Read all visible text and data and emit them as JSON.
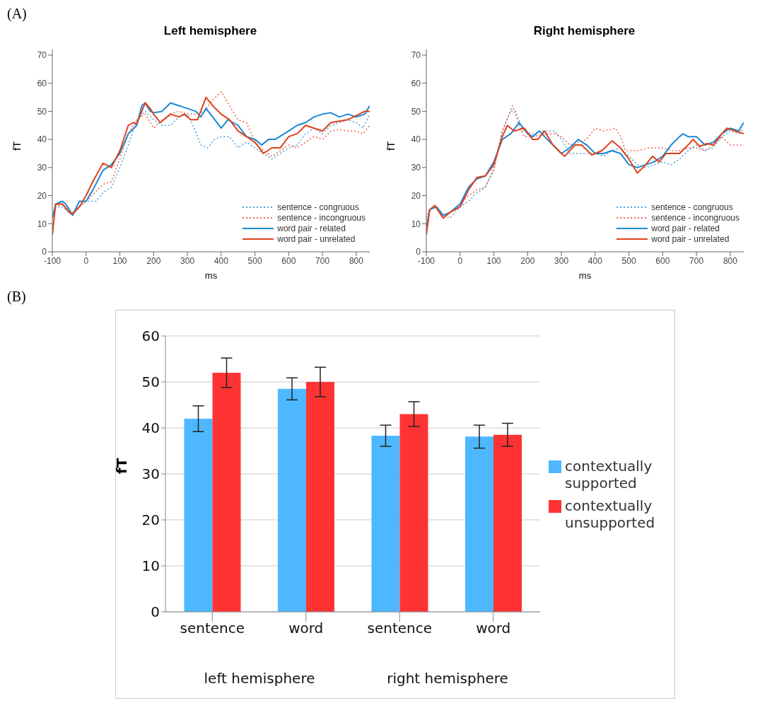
{
  "chart_data": [
    {
      "type": "line",
      "title": "Left hemisphere",
      "xlabel": "ms",
      "ylabel": "fT",
      "annotations": [
        "(A)"
      ],
      "xlim": [
        -100,
        840
      ],
      "ylim": [
        0,
        72
      ],
      "xticks": [
        -100,
        0,
        100,
        200,
        300,
        400,
        500,
        600,
        700,
        800
      ],
      "yticks": [
        0,
        10,
        20,
        30,
        40,
        50,
        60,
        70
      ],
      "legend": "bottom right",
      "series": [
        {
          "name": "sentence - congruous",
          "color": "#4fa3e0",
          "line_style": "dotted",
          "x": [
            -100,
            -90,
            -70,
            -40,
            -20,
            0,
            30,
            50,
            75,
            100,
            125,
            150,
            175,
            200,
            225,
            250,
            275,
            300,
            320,
            340,
            360,
            380,
            400,
            425,
            450,
            475,
            500,
            525,
            550,
            575,
            600,
            625,
            650,
            675,
            700,
            725,
            750,
            775,
            800,
            820,
            840
          ],
          "values": [
            12,
            16,
            16,
            13,
            16,
            18,
            18,
            21,
            23,
            30,
            38,
            47,
            50,
            47,
            45,
            45,
            48,
            49,
            44,
            38,
            37,
            40,
            41,
            41,
            37,
            39,
            37,
            35,
            33,
            35,
            37,
            38,
            42,
            44,
            42,
            45,
            46,
            47,
            46,
            44,
            49
          ]
        },
        {
          "name": "sentence - incongruous",
          "color": "#ef6a50",
          "line_style": "dotted",
          "x": [
            -100,
            -90,
            -70,
            -40,
            -20,
            0,
            25,
            50,
            75,
            100,
            125,
            150,
            175,
            200,
            225,
            250,
            275,
            300,
            325,
            350,
            375,
            400,
            420,
            450,
            475,
            500,
            525,
            550,
            575,
            600,
            625,
            650,
            675,
            700,
            725,
            750,
            775,
            800,
            820,
            840
          ],
          "values": [
            12,
            16,
            17,
            14,
            16,
            18,
            21,
            24,
            25,
            33,
            42,
            47,
            49,
            44,
            47,
            49,
            50,
            49,
            49,
            50,
            54,
            57,
            53,
            47,
            46,
            39,
            36,
            34,
            36,
            38,
            37,
            39,
            41,
            40,
            43,
            43.5,
            43,
            43,
            42,
            45
          ]
        },
        {
          "name": "word pair - related",
          "color": "#1a88d4",
          "line_style": "solid",
          "x": [
            -100,
            -90,
            -70,
            -60,
            -40,
            -20,
            0,
            20,
            50,
            75,
            100,
            125,
            150,
            165,
            175,
            190,
            200,
            225,
            250,
            275,
            300,
            325,
            340,
            355,
            375,
            400,
            420,
            450,
            475,
            500,
            520,
            540,
            560,
            600,
            625,
            650,
            675,
            700,
            725,
            750,
            775,
            800,
            825,
            840
          ],
          "values": [
            12,
            17,
            18,
            17,
            13,
            18,
            18,
            22,
            29,
            31,
            35,
            42,
            45,
            52,
            53,
            50,
            49.5,
            50,
            53,
            52,
            51,
            50,
            48,
            51,
            48,
            44,
            47,
            45,
            41,
            40,
            38,
            40,
            40,
            43,
            45,
            46,
            48,
            49,
            49.5,
            48,
            49,
            48,
            49,
            52
          ]
        },
        {
          "name": "word pair - unrelated",
          "color": "#e0401c",
          "line_style": "solid",
          "x": [
            -100,
            -90,
            -70,
            -50,
            -40,
            -20,
            0,
            20,
            50,
            75,
            100,
            125,
            140,
            150,
            165,
            175,
            190,
            200,
            220,
            250,
            275,
            290,
            310,
            330,
            355,
            375,
            400,
            425,
            450,
            475,
            500,
            525,
            550,
            575,
            600,
            625,
            650,
            675,
            700,
            725,
            750,
            775,
            800,
            825,
            840
          ],
          "values": [
            6,
            17,
            17,
            14,
            13.5,
            16,
            20,
            25,
            31.5,
            30,
            36,
            45,
            46,
            45.5,
            50,
            53,
            51,
            49,
            46,
            49,
            48,
            49,
            47,
            47,
            55,
            52,
            49,
            47,
            43,
            41,
            39,
            35,
            37,
            37,
            41,
            42,
            45,
            44,
            43,
            46,
            46.5,
            47,
            48.5,
            50,
            50
          ]
        }
      ]
    },
    {
      "type": "line",
      "title": "Right hemisphere",
      "xlabel": "ms",
      "ylabel": "fT",
      "xlim": [
        -100,
        840
      ],
      "ylim": [
        0,
        72
      ],
      "xticks": [
        -100,
        0,
        100,
        200,
        300,
        400,
        500,
        600,
        700,
        800
      ],
      "yticks": [
        0,
        10,
        20,
        30,
        40,
        50,
        60,
        70
      ],
      "legend": "bottom right",
      "series": [
        {
          "name": "sentence - congruous",
          "color": "#4fa3e0",
          "line_style": "dotted",
          "x": [
            -100,
            -90,
            -70,
            -50,
            -30,
            0,
            25,
            50,
            75,
            100,
            125,
            150,
            165,
            185,
            215,
            240,
            260,
            280,
            300,
            325,
            350,
            375,
            400,
            425,
            450,
            475,
            500,
            525,
            550,
            575,
            600,
            625,
            650,
            675,
            700,
            725,
            750,
            775,
            800,
            825,
            840
          ],
          "values": [
            12,
            15,
            16,
            13,
            12,
            16,
            18,
            21,
            23,
            30,
            43,
            50,
            50,
            43,
            42,
            43,
            43,
            43,
            40,
            35,
            35,
            35,
            35,
            34,
            36,
            37,
            34,
            31,
            30,
            31,
            32,
            31,
            33,
            36,
            38,
            36,
            37,
            41,
            43,
            42,
            44
          ]
        },
        {
          "name": "sentence - incongruous",
          "color": "#ef6a50",
          "line_style": "dotted",
          "x": [
            -100,
            -90,
            -70,
            -50,
            -30,
            0,
            25,
            50,
            75,
            100,
            125,
            155,
            175,
            190,
            215,
            260,
            280,
            300,
            325,
            350,
            375,
            400,
            425,
            460,
            475,
            490,
            525,
            560,
            600,
            625,
            650,
            675,
            700,
            725,
            750,
            775,
            800,
            820,
            840
          ],
          "values": [
            10,
            15,
            16,
            12,
            14,
            17,
            20,
            22,
            23,
            29,
            43,
            52,
            45,
            41,
            41,
            42,
            42,
            41,
            38,
            39,
            40,
            44,
            43,
            44,
            41,
            36,
            36,
            37,
            37,
            36,
            36,
            37,
            37,
            36,
            38,
            41,
            38,
            38,
            38
          ]
        },
        {
          "name": "word pair - related",
          "color": "#1a88d4",
          "line_style": "solid",
          "x": [
            -100,
            -90,
            -70,
            -50,
            -30,
            0,
            25,
            50,
            75,
            100,
            125,
            150,
            175,
            200,
            215,
            235,
            250,
            275,
            300,
            325,
            350,
            375,
            400,
            425,
            450,
            475,
            500,
            525,
            550,
            575,
            600,
            625,
            650,
            660,
            675,
            700,
            725,
            750,
            775,
            800,
            825,
            840
          ],
          "values": [
            8,
            15,
            16,
            13,
            14,
            17,
            23,
            26,
            27,
            32,
            40,
            42,
            46,
            42,
            41,
            43,
            41,
            38,
            35,
            37,
            40,
            38,
            35,
            35,
            36,
            35,
            31,
            30,
            31,
            32,
            34,
            38,
            41,
            42,
            41,
            41,
            38,
            39,
            42,
            44,
            43,
            46
          ]
        },
        {
          "name": "word pair - unrelated",
          "color": "#e0401c",
          "line_style": "solid",
          "x": [
            -100,
            -90,
            -75,
            -50,
            -30,
            0,
            25,
            50,
            75,
            100,
            125,
            140,
            160,
            190,
            215,
            230,
            250,
            275,
            300,
            310,
            340,
            360,
            390,
            420,
            450,
            475,
            500,
            525,
            550,
            570,
            590,
            610,
            630,
            650,
            675,
            690,
            710,
            730,
            750,
            775,
            790,
            815,
            840
          ],
          "values": [
            6,
            15,
            16.5,
            12,
            14,
            16,
            22,
            26.5,
            27,
            31,
            41,
            45,
            43,
            44,
            40,
            40,
            43,
            38,
            35,
            34,
            38,
            38,
            34.5,
            36,
            39.5,
            37,
            33,
            28,
            31,
            34,
            32,
            35,
            35,
            35,
            38,
            40,
            37.5,
            38.5,
            38,
            42,
            44,
            43,
            42
          ]
        }
      ]
    },
    {
      "type": "bar",
      "ylabel": "fT",
      "annotations": [
        "(B)",
        "left hemisphere",
        "right hemisphere"
      ],
      "categories": [
        "sentence",
        "word",
        "sentence",
        "word"
      ],
      "ylim": [
        0,
        60
      ],
      "yticks": [
        0,
        10,
        20,
        30,
        40,
        50,
        60
      ],
      "grid": "y",
      "legend": "right",
      "series": [
        {
          "name": "contextually supported",
          "color": "#4db8ff",
          "values": [
            42,
            48.5,
            38.3,
            38.1
          ],
          "errors": [
            2.8,
            2.4,
            2.3,
            2.5
          ]
        },
        {
          "name": "contextually unsupported",
          "color": "#ff3333",
          "values": [
            52,
            50,
            43,
            38.5
          ],
          "errors": [
            3.2,
            3.2,
            2.7,
            2.5
          ]
        }
      ]
    }
  ]
}
